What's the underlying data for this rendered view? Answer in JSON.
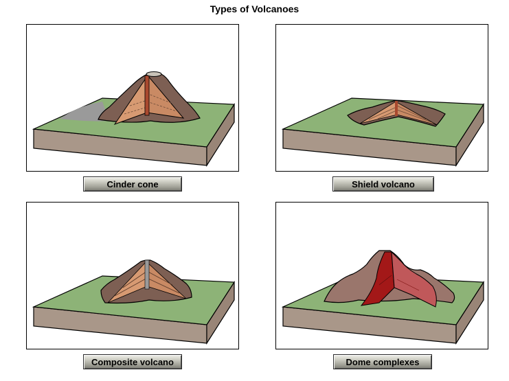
{
  "title": "Types of Volcanoes",
  "panels": [
    {
      "id": "cinder",
      "label": "Cinder cone"
    },
    {
      "id": "shield",
      "label": "Shield volcano"
    },
    {
      "id": "composite",
      "label": "Composite volcano"
    },
    {
      "id": "dome",
      "label": "Dome complexes"
    }
  ],
  "colors": {
    "grass": "#8db377",
    "earth_side": "#a99789",
    "cone_outer": "#7d5f53",
    "cone_cut": "#d79a72",
    "lava": "#a31818",
    "ash": "#9a9a9a"
  }
}
